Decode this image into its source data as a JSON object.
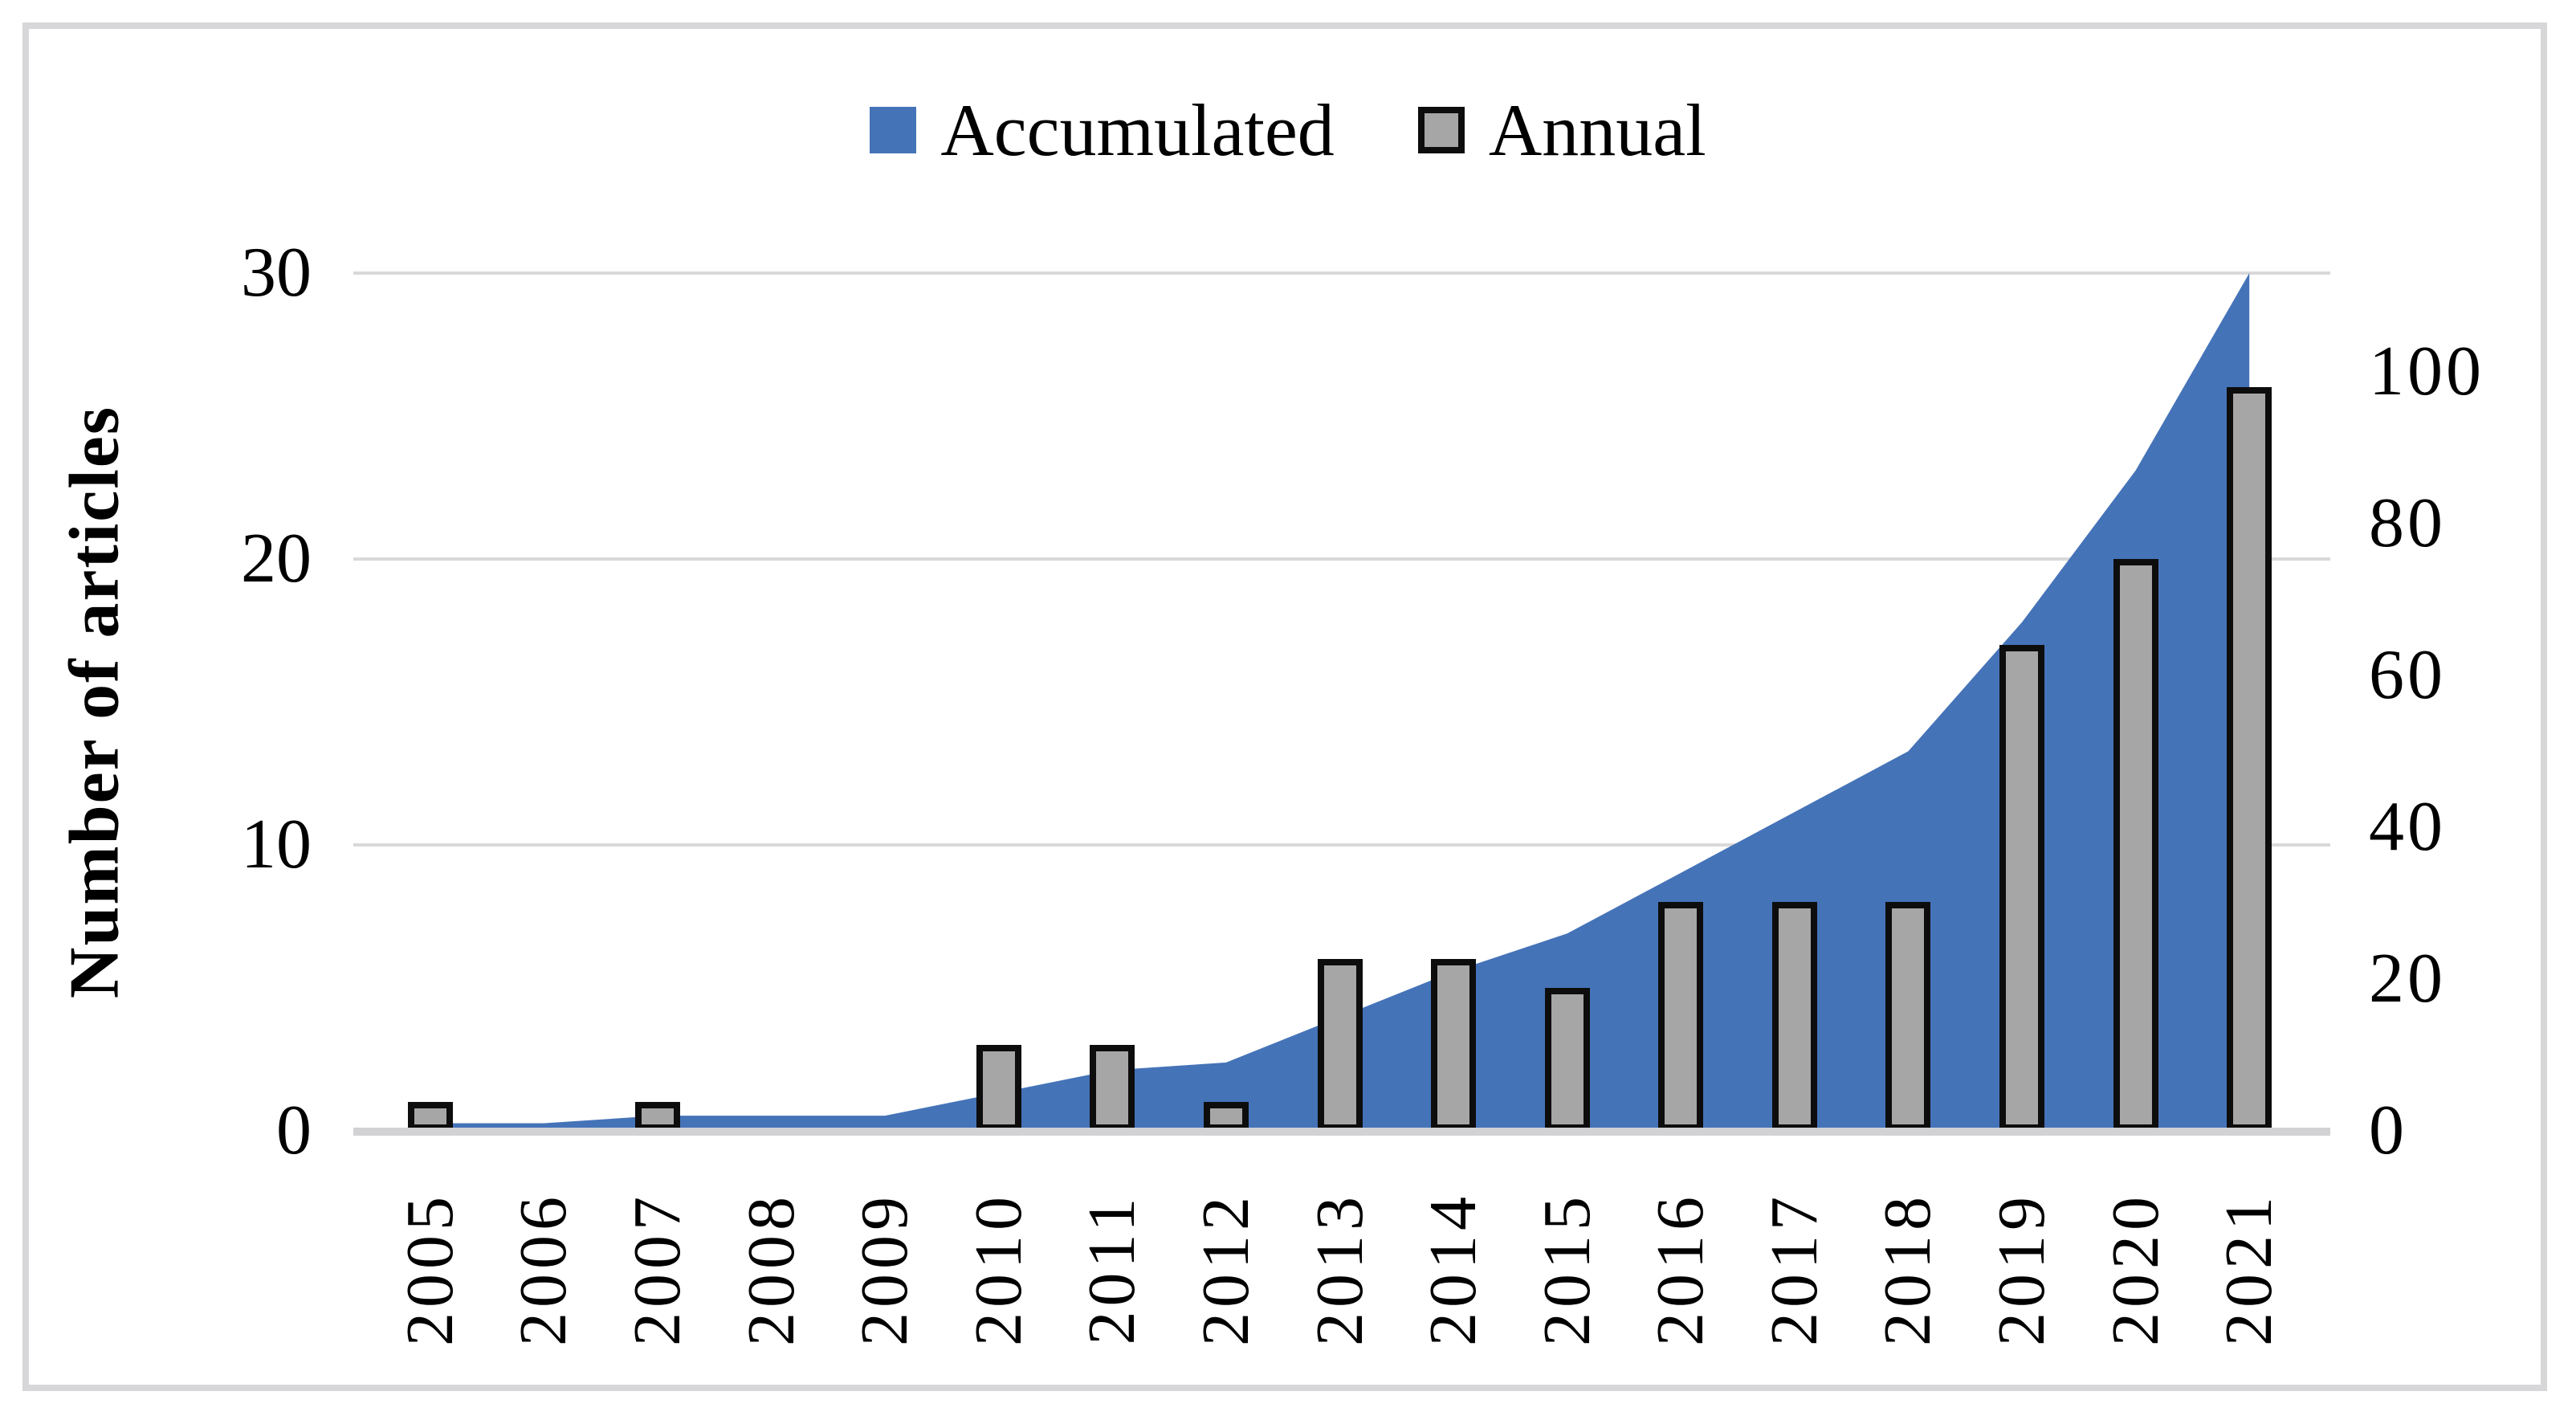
{
  "figure": {
    "background": "#ffffff",
    "border_color": "#d7d7d9",
    "gridline_color": "#d9d9d9",
    "baseline_color": "#d2d2d5"
  },
  "legend": {
    "items": [
      {
        "label": "Accumulated",
        "swatch_color": "#4573B8",
        "swatch_border": "none"
      },
      {
        "label": "Annual",
        "swatch_color": "#A6A6A6",
        "swatch_border": "#0d0d0d"
      }
    ]
  },
  "left_axis": {
    "title": "Number of articles",
    "tick_labels": [
      "30",
      "20",
      "10",
      "0"
    ],
    "max": 30
  },
  "right_axis": {
    "tick_labels": [
      "100",
      "80",
      "60",
      "40",
      "20",
      "0"
    ],
    "tick_values": [
      100,
      80,
      60,
      40,
      20,
      0
    ],
    "max": 113
  },
  "chart_data": {
    "type": "area+bar combo",
    "categories": [
      "2005",
      "2006",
      "2007",
      "2008",
      "2009",
      "2010",
      "2011",
      "2012",
      "2013",
      "2014",
      "2015",
      "2016",
      "2017",
      "2018",
      "2019",
      "2020",
      "2021"
    ],
    "series": [
      {
        "name": "Accumulated",
        "type": "area",
        "axis": "right",
        "color": "#4573B8",
        "values": [
          1,
          1,
          2,
          2,
          2,
          5,
          8,
          9,
          15,
          21,
          26,
          34,
          42,
          50,
          67,
          87,
          113
        ]
      },
      {
        "name": "Annual",
        "type": "bar",
        "axis": "left",
        "color": "#A6A6A6",
        "border_color": "#0d0d0d",
        "values": [
          1,
          0,
          1,
          0,
          0,
          3,
          3,
          1,
          6,
          6,
          5,
          8,
          8,
          8,
          17,
          20,
          26
        ]
      }
    ],
    "title": "",
    "xlabel": "",
    "ylabel": "Number of articles",
    "left_ylim": [
      0,
      30
    ],
    "right_ylim": [
      0,
      113
    ],
    "grid": true,
    "legend_position": "top-center"
  }
}
